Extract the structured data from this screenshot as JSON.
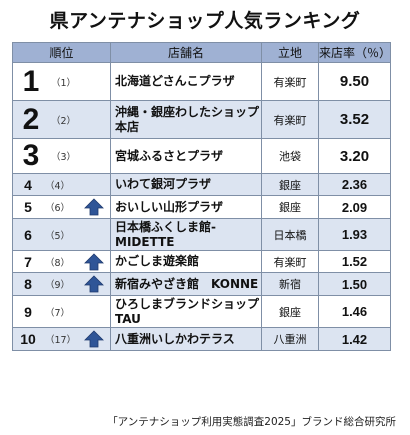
{
  "title": "県アンテナショップ人気ランキング",
  "headers": {
    "rank": "順位",
    "shop": "店舗名",
    "location": "立地",
    "rate": "来店率（％）"
  },
  "rows": [
    {
      "rank": "1",
      "prev": "（1）",
      "name": "北海道どさんこプラザ",
      "location": "有楽町",
      "rate": "9.50",
      "up": false
    },
    {
      "rank": "2",
      "prev": "（2）",
      "name": "沖縄・銀座わしたショップ本店",
      "location": "有楽町",
      "rate": "3.52",
      "up": false
    },
    {
      "rank": "3",
      "prev": "（3）",
      "name": "宮城ふるさとプラザ",
      "location": "池袋",
      "rate": "3.20",
      "up": false
    },
    {
      "rank": "4",
      "prev": "（4）",
      "name": "いわて銀河プラザ",
      "location": "銀座",
      "rate": "2.36",
      "up": false
    },
    {
      "rank": "5",
      "prev": "（6）",
      "name": "おいしい山形プラザ",
      "location": "銀座",
      "rate": "2.09",
      "up": true
    },
    {
      "rank": "6",
      "prev": "（5）",
      "name": "日本橋ふくしま館-MIDETTE",
      "location": "日本橋",
      "rate": "1.93",
      "up": false
    },
    {
      "rank": "7",
      "prev": "（8）",
      "name": "かごしま遊楽館",
      "location": "有楽町",
      "rate": "1.52",
      "up": true
    },
    {
      "rank": "8",
      "prev": "（9）",
      "name": "新宿みやざき館　KONNE",
      "location": "新宿",
      "rate": "1.50",
      "up": true
    },
    {
      "rank": "9",
      "prev": "（7）",
      "name": "ひろしまブランドショップTAU",
      "location": "銀座",
      "rate": "1.46",
      "up": false
    },
    {
      "rank": "10",
      "prev": "（17）",
      "name": "八重洲いしかわテラス",
      "location": "八重洲",
      "rate": "1.42",
      "up": true
    }
  ],
  "colors": {
    "header_bg": "#9fb1d3",
    "even_row_bg": "#dce4f1",
    "arrow": "#2f5597"
  },
  "icons": {
    "up": "up-arrow-icon"
  },
  "source": "「アンテナショップ利用実態調査2025」ブランド総合研究所"
}
